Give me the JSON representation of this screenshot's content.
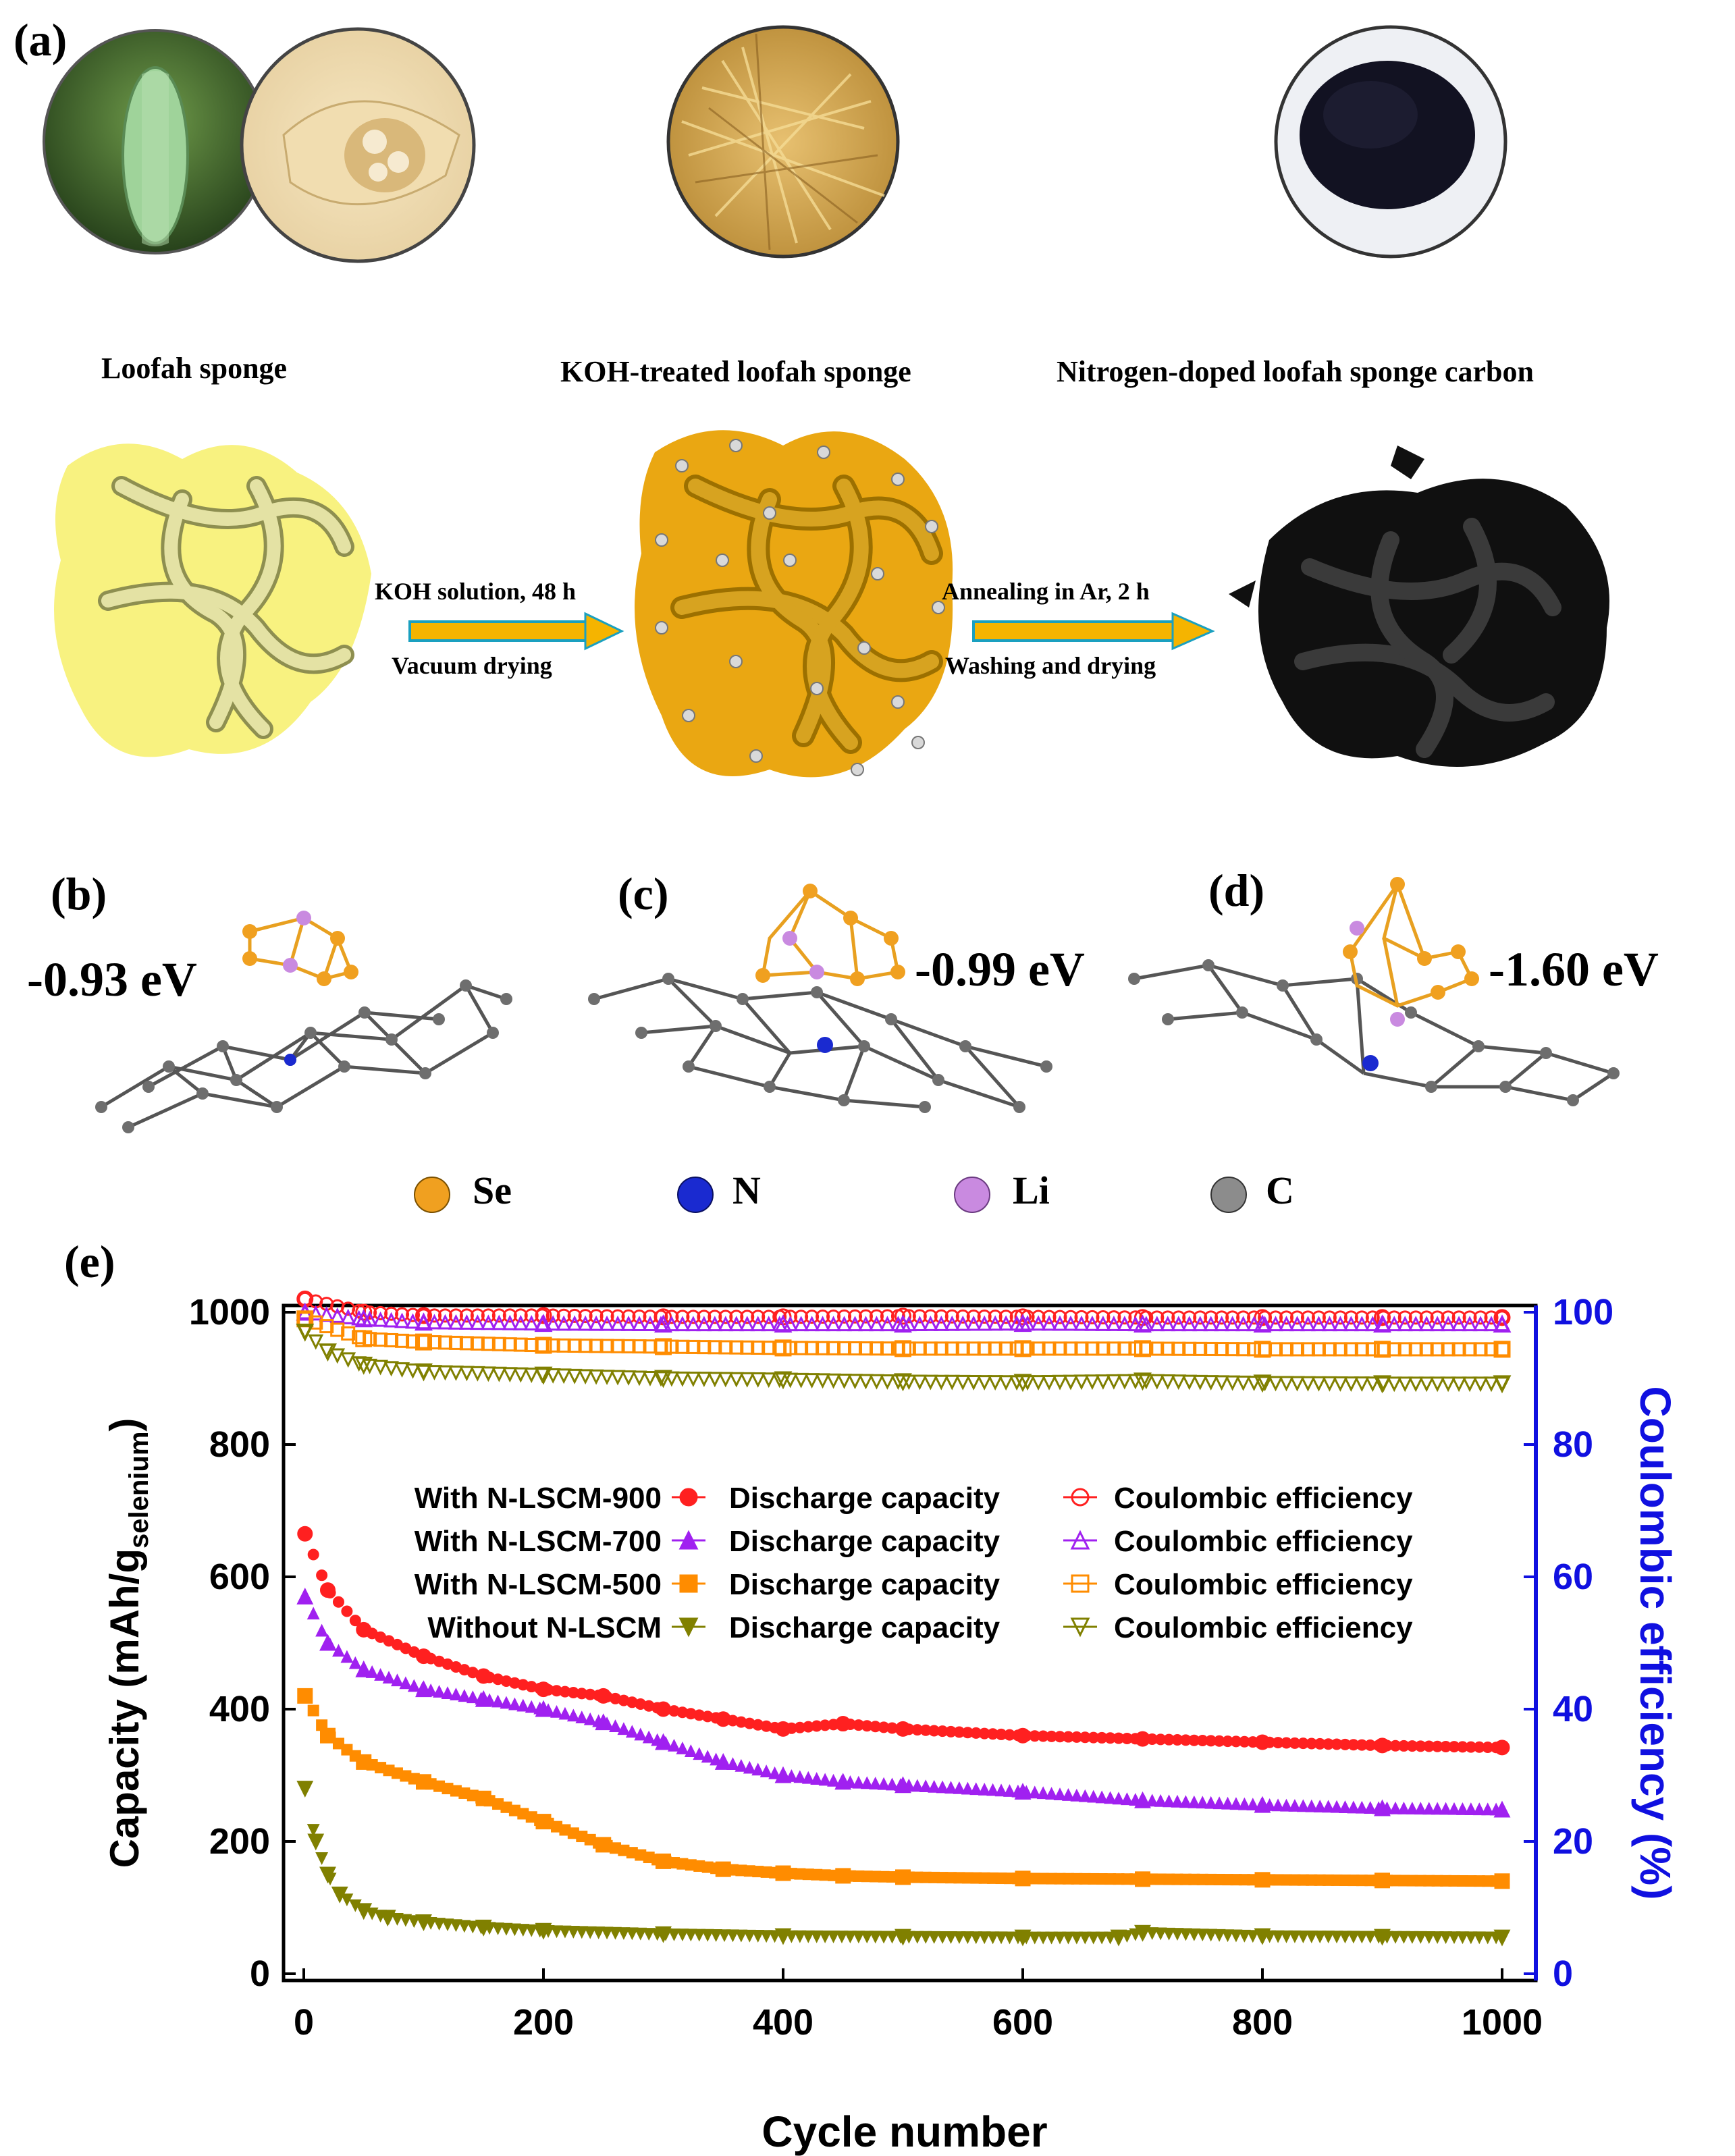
{
  "panel_a": {
    "label": "(a)",
    "captions": [
      "Loofah sponge",
      "KOH-treated loofah sponge",
      "Nitrogen-doped loofah sponge carbon"
    ],
    "step1_top": "KOH solution, 48 h",
    "step1_bottom": "Vacuum drying",
    "step2_top": "Annealing in Ar, 2 h",
    "step2_bottom": "Washing and drying"
  },
  "panel_b": {
    "label": "(b)",
    "energy": "-0.93 eV"
  },
  "panel_c": {
    "label": "(c)",
    "energy": "-0.99 eV"
  },
  "panel_d": {
    "label": "(d)",
    "energy": "-1.60 eV"
  },
  "atom_legend": [
    {
      "symbol": "Se",
      "color": "#f0a020"
    },
    {
      "symbol": "N",
      "color": "#1a2ad0"
    },
    {
      "symbol": "Li",
      "color": "#c98ae0"
    },
    {
      "symbol": "C",
      "color": "#8c8c8c"
    }
  ],
  "panel_e": {
    "label": "(e)"
  },
  "chart_data": {
    "type": "scatter",
    "xlabel": "Cycle number",
    "ylabel_left": "Capacity (mAh/g",
    "ylabel_left_sub": "selenium",
    "ylabel_left_end": ")",
    "ylabel_right": "Coulombic efficiency (%)",
    "xlim": [
      0,
      1000
    ],
    "ylim_left": [
      0,
      1000
    ],
    "ylim_right": [
      0,
      100
    ],
    "x_ticks": [
      "0",
      "200",
      "400",
      "600",
      "800",
      "1000"
    ],
    "y_ticks_left": [
      "0",
      "200",
      "400",
      "600",
      "800",
      "1000"
    ],
    "y_ticks_right": [
      "0",
      "20",
      "40",
      "60",
      "80",
      "100"
    ],
    "right_axis_color": "#1010e0",
    "legend_text": "Discharge capacity",
    "legend_text_ce": "Coulombic efficiency",
    "series": [
      {
        "name": "With N-LSCM-900",
        "color": "#ff2020",
        "marker": "circle",
        "capacity": {
          "x": [
            1,
            20,
            50,
            100,
            150,
            200,
            250,
            300,
            350,
            400,
            450,
            500,
            600,
            700,
            800,
            900,
            1000
          ],
          "y": [
            665,
            580,
            520,
            480,
            450,
            430,
            420,
            400,
            385,
            370,
            378,
            370,
            360,
            355,
            350,
            345,
            342
          ]
        },
        "ce": {
          "x": [
            1,
            50,
            100,
            200,
            300,
            400,
            500,
            600,
            700,
            800,
            900,
            1000
          ],
          "y": [
            102,
            100,
            99.5,
            99.5,
            99.3,
            99.3,
            99.4,
            99.3,
            99.2,
            99.2,
            99.2,
            99.2
          ]
        }
      },
      {
        "name": "With N-LSCM-700",
        "color": "#a020f0",
        "marker": "triangle",
        "capacity": {
          "x": [
            1,
            20,
            50,
            100,
            150,
            200,
            250,
            300,
            350,
            400,
            450,
            500,
            600,
            700,
            800,
            900,
            1000
          ],
          "y": [
            570,
            500,
            460,
            430,
            415,
            400,
            380,
            350,
            320,
            300,
            290,
            285,
            275,
            262,
            255,
            250,
            248
          ]
        },
        "ce": {
          "x": [
            1,
            50,
            100,
            200,
            300,
            400,
            500,
            600,
            700,
            800,
            900,
            1000
          ],
          "y": [
            100,
            99,
            98.5,
            98.3,
            98.2,
            98.2,
            98.2,
            98.3,
            98.2,
            98.2,
            98.2,
            98.2
          ]
        }
      },
      {
        "name": "With N-LSCM-500",
        "color": "#ff8c00",
        "marker": "square",
        "capacity": {
          "x": [
            1,
            20,
            50,
            100,
            150,
            200,
            250,
            300,
            350,
            400,
            450,
            500,
            600,
            700,
            800,
            900,
            1000
          ],
          "y": [
            420,
            360,
            320,
            290,
            265,
            230,
            195,
            170,
            158,
            152,
            148,
            146,
            144,
            143,
            142,
            141,
            140
          ]
        },
        "ce": {
          "x": [
            1,
            50,
            100,
            200,
            300,
            400,
            500,
            600,
            700,
            800,
            900,
            1000
          ],
          "y": [
            99,
            96,
            95.5,
            95,
            94.8,
            94.6,
            94.5,
            94.5,
            94.5,
            94.4,
            94.4,
            94.4
          ]
        }
      },
      {
        "name": "Without N-LSCM",
        "color": "#808000",
        "marker": "triangle-down",
        "capacity": {
          "x": [
            1,
            10,
            20,
            30,
            50,
            70,
            100,
            150,
            200,
            300,
            400,
            500,
            600,
            680,
            700,
            800,
            900,
            1000
          ],
          "y": [
            280,
            200,
            150,
            120,
            95,
            85,
            78,
            70,
            65,
            60,
            57,
            56,
            55,
            55,
            62,
            57,
            56,
            55
          ]
        },
        "ce": {
          "x": [
            1,
            20,
            50,
            100,
            200,
            300,
            400,
            500,
            600,
            700,
            800,
            900,
            1000
          ],
          "y": [
            97,
            94,
            92,
            91,
            90.5,
            90,
            89.8,
            89.5,
            89.4,
            89.6,
            89.3,
            89.2,
            89.2
          ]
        }
      }
    ]
  }
}
